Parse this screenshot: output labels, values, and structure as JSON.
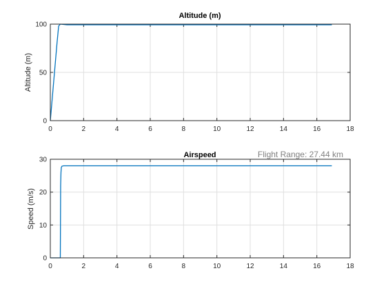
{
  "figure": {
    "background": "#ffffff"
  },
  "chart_data": [
    {
      "type": "line",
      "title": "Altitude (m)",
      "xlabel": "",
      "ylabel": "Altitude (m)",
      "xlim": [
        0,
        18
      ],
      "ylim": [
        0,
        100
      ],
      "xticks": [
        "0",
        "2",
        "4",
        "6",
        "8",
        "10",
        "12",
        "14",
        "16",
        "18"
      ],
      "yticks": [
        "0",
        "50",
        "100"
      ],
      "grid": true,
      "series": [
        {
          "color": "#0072bd",
          "x": [
            0,
            0.1,
            0.2,
            0.3,
            0.4,
            0.5,
            0.6,
            1,
            2,
            4,
            6,
            8,
            10,
            12,
            14,
            16,
            16.9
          ],
          "y": [
            0,
            20,
            40,
            60,
            80,
            98,
            100,
            99.3,
            99.3,
            99.3,
            99.3,
            99.3,
            99.3,
            99.3,
            99.3,
            99.3,
            99.3
          ]
        }
      ]
    },
    {
      "type": "line",
      "title": "Airspeed",
      "xlabel": "",
      "ylabel": "Speed (m/s)",
      "xlim": [
        0,
        18
      ],
      "ylim": [
        0,
        30
      ],
      "xticks": [
        "0",
        "2",
        "4",
        "6",
        "8",
        "10",
        "12",
        "14",
        "16",
        "18"
      ],
      "yticks": [
        "0",
        "10",
        "20",
        "30"
      ],
      "grid": true,
      "annotation": "Flight Range: 27.44 km",
      "series": [
        {
          "color": "#0072bd",
          "x": [
            0,
            0.6,
            0.62,
            0.64,
            0.66,
            0.7,
            0.8,
            1,
            2,
            4,
            6,
            8,
            10,
            12,
            14,
            16,
            16.9
          ],
          "y": [
            0,
            0,
            22,
            26,
            27.5,
            27.9,
            28,
            28,
            28,
            28,
            28,
            28,
            28,
            28,
            28,
            28,
            28
          ]
        }
      ]
    }
  ]
}
